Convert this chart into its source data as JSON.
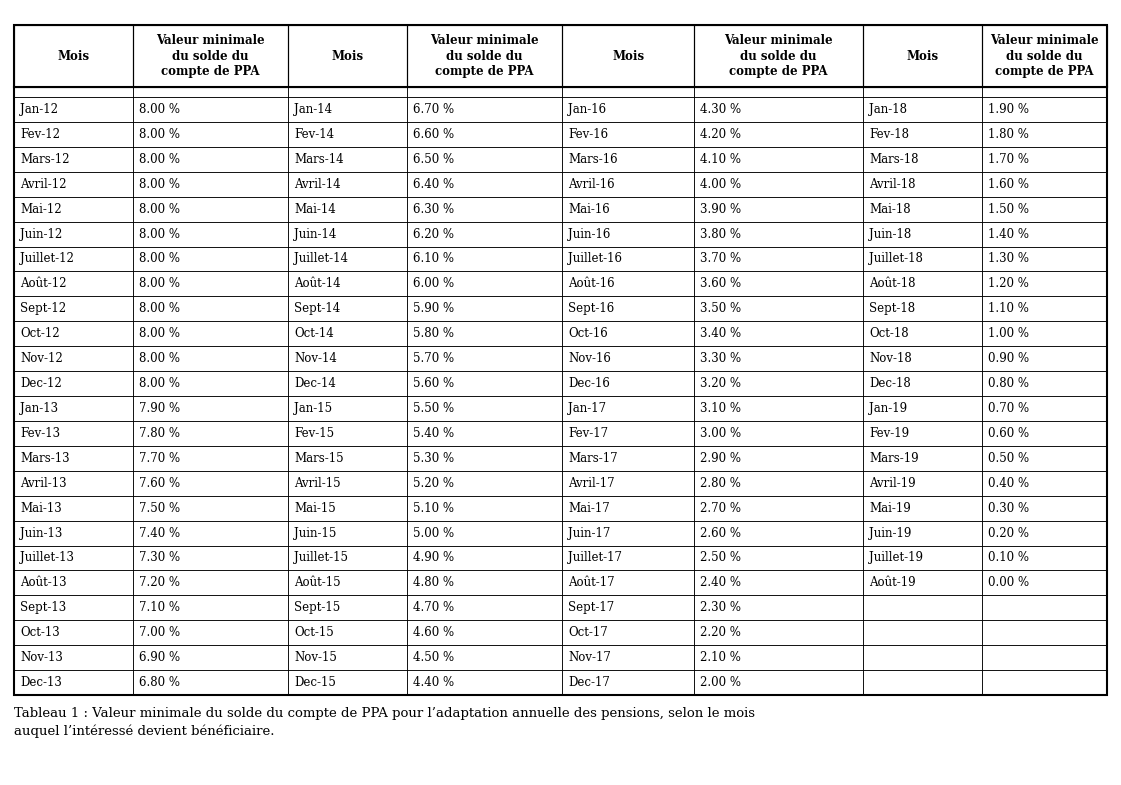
{
  "col1_months": [
    "Jan-12",
    "Fev-12",
    "Mars-12",
    "Avril-12",
    "Mai-12",
    "Juin-12",
    "Juillet-12",
    "Août-12",
    "Sept-12",
    "Oct-12",
    "Nov-12",
    "Dec-12",
    "Jan-13",
    "Fev-13",
    "Mars-13",
    "Avril-13",
    "Mai-13",
    "Juin-13",
    "Juillet-13",
    "Août-13",
    "Sept-13",
    "Oct-13",
    "Nov-13",
    "Dec-13"
  ],
  "col1_values": [
    "8.00 %",
    "8.00 %",
    "8.00 %",
    "8.00 %",
    "8.00 %",
    "8.00 %",
    "8.00 %",
    "8.00 %",
    "8.00 %",
    "8.00 %",
    "8.00 %",
    "8.00 %",
    "7.90 %",
    "7.80 %",
    "7.70 %",
    "7.60 %",
    "7.50 %",
    "7.40 %",
    "7.30 %",
    "7.20 %",
    "7.10 %",
    "7.00 %",
    "6.90 %",
    "6.80 %"
  ],
  "col2_months": [
    "Jan-14",
    "Fev-14",
    "Mars-14",
    "Avril-14",
    "Mai-14",
    "Juin-14",
    "Juillet-14",
    "Août-14",
    "Sept-14",
    "Oct-14",
    "Nov-14",
    "Dec-14",
    "Jan-15",
    "Fev-15",
    "Mars-15",
    "Avril-15",
    "Mai-15",
    "Juin-15",
    "Juillet-15",
    "Août-15",
    "Sept-15",
    "Oct-15",
    "Nov-15",
    "Dec-15"
  ],
  "col2_values": [
    "6.70 %",
    "6.60 %",
    "6.50 %",
    "6.40 %",
    "6.30 %",
    "6.20 %",
    "6.10 %",
    "6.00 %",
    "5.90 %",
    "5.80 %",
    "5.70 %",
    "5.60 %",
    "5.50 %",
    "5.40 %",
    "5.30 %",
    "5.20 %",
    "5.10 %",
    "5.00 %",
    "4.90 %",
    "4.80 %",
    "4.70 %",
    "4.60 %",
    "4.50 %",
    "4.40 %"
  ],
  "col3_months": [
    "Jan-16",
    "Fev-16",
    "Mars-16",
    "Avril-16",
    "Mai-16",
    "Juin-16",
    "Juillet-16",
    "Août-16",
    "Sept-16",
    "Oct-16",
    "Nov-16",
    "Dec-16",
    "Jan-17",
    "Fev-17",
    "Mars-17",
    "Avril-17",
    "Mai-17",
    "Juin-17",
    "Juillet-17",
    "Août-17",
    "Sept-17",
    "Oct-17",
    "Nov-17",
    "Dec-17"
  ],
  "col3_values": [
    "4.30 %",
    "4.20 %",
    "4.10 %",
    "4.00 %",
    "3.90 %",
    "3.80 %",
    "3.70 %",
    "3.60 %",
    "3.50 %",
    "3.40 %",
    "3.30 %",
    "3.20 %",
    "3.10 %",
    "3.00 %",
    "2.90 %",
    "2.80 %",
    "2.70 %",
    "2.60 %",
    "2.50 %",
    "2.40 %",
    "2.30 %",
    "2.20 %",
    "2.10 %",
    "2.00 %"
  ],
  "col4_months": [
    "Jan-18",
    "Fev-18",
    "Mars-18",
    "Avril-18",
    "Mai-18",
    "Juin-18",
    "Juillet-18",
    "Août-18",
    "Sept-18",
    "Oct-18",
    "Nov-18",
    "Dec-18",
    "Jan-19",
    "Fev-19",
    "Mars-19",
    "Avril-19",
    "Mai-19",
    "Juin-19",
    "Juillet-19",
    "Août-19",
    "",
    "",
    "",
    ""
  ],
  "col4_values": [
    "1.90 %",
    "1.80 %",
    "1.70 %",
    "1.60 %",
    "1.50 %",
    "1.40 %",
    "1.30 %",
    "1.20 %",
    "1.10 %",
    "1.00 %",
    "0.90 %",
    "0.80 %",
    "0.70 %",
    "0.60 %",
    "0.50 %",
    "0.40 %",
    "0.30 %",
    "0.20 %",
    "0.10 %",
    "0.00 %",
    "",
    "",
    "",
    ""
  ],
  "headers": [
    "Mois",
    "Valeur minimale\ndu solde du\ncompte de PPA",
    "Mois",
    "Valeur minimale\ndu solde du\ncompte de PPA",
    "Mois",
    "Valeur minimale\ndu solde du\ncompte de PPA",
    "Mois",
    "Valeur minimale\ndu solde du\ncompte de PPA"
  ],
  "caption_line1": "Tableau 1 : Valeur minimale du solde du compte de PPA pour l’adaptation annuelle des pensions, selon le mois",
  "caption_line2": "auquel l’intéressé devient bénéficiaire.",
  "bg_color": "#ffffff",
  "text_color": "#000000",
  "col_widths_pts": [
    90,
    118,
    90,
    118,
    100,
    128,
    90,
    95
  ],
  "header_fontsize": 8.5,
  "data_fontsize": 8.5,
  "caption_fontsize": 9.5
}
